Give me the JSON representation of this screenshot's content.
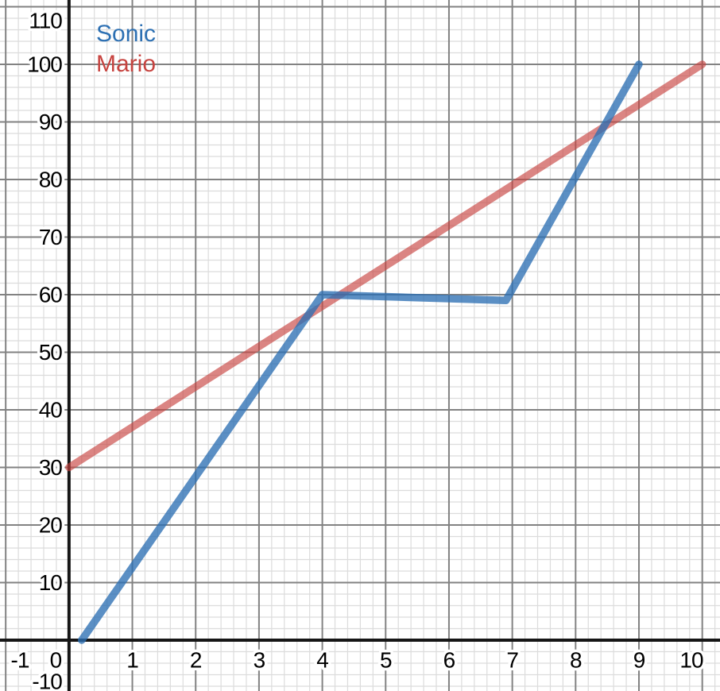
{
  "chart_data": {
    "type": "line",
    "title": "",
    "xlabel": "",
    "ylabel": "",
    "xlim": [
      -1.09,
      10.28
    ],
    "ylim": [
      -8.83,
      111.17
    ],
    "grid": true,
    "x_major_step": 1,
    "y_major_step": 10,
    "x_minor_step": 0.2,
    "y_minor_step": 2,
    "x_tick_labels": [
      -1,
      0,
      1,
      2,
      3,
      4,
      5,
      6,
      7,
      8,
      9,
      10
    ],
    "y_tick_labels": [
      -10,
      10,
      20,
      30,
      40,
      50,
      60,
      70,
      80,
      90,
      100,
      110
    ],
    "legend_position": "top-left",
    "series": [
      {
        "name": "Sonic",
        "color": "#2d70b3",
        "opacity": 0.78,
        "points": [
          [
            0.2,
            0
          ],
          [
            4,
            60
          ],
          [
            6.9,
            59
          ],
          [
            9,
            100
          ]
        ]
      },
      {
        "name": "Mario",
        "color": "#c74440",
        "opacity": 0.65,
        "points": [
          [
            0,
            30
          ],
          [
            10,
            100
          ]
        ]
      }
    ]
  },
  "colors": {
    "background": "#ffffff",
    "axis": "#161616",
    "major_grid": "#828282",
    "minor_grid": "#dcdcdc",
    "tick_label": "#000000"
  }
}
